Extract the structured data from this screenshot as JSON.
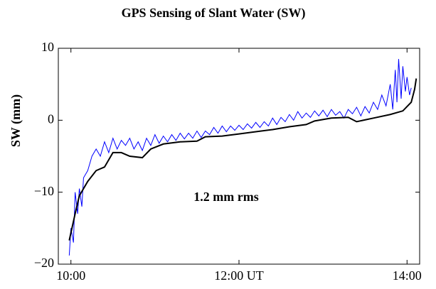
{
  "chart_data": {
    "type": "line",
    "title": "GPS Sensing of Slant Water (SW)",
    "ylabel": "SW (mm)",
    "annotation": "1.2 mm rms",
    "xlim": [
      9.85,
      14.15
    ],
    "xticks": [
      {
        "value": 10,
        "label": "10:00"
      },
      {
        "value": 12,
        "label": "12:00 UT"
      },
      {
        "value": 14,
        "label": "14:00"
      }
    ],
    "ylim": [
      -20,
      10
    ],
    "yticks": [
      10,
      0,
      {
        "value": -10,
        "label": "−10"
      },
      {
        "value": -20,
        "label": "−20"
      }
    ],
    "series": [
      {
        "color": "#0000ff",
        "x": [
          9.98,
          10.0,
          10.03,
          10.05,
          10.08,
          10.1,
          10.13,
          10.15,
          10.2,
          10.25,
          10.3,
          10.35,
          10.4,
          10.45,
          10.5,
          10.55,
          10.6,
          10.65,
          10.7,
          10.75,
          10.8,
          10.85,
          10.9,
          10.95,
          11.0,
          11.05,
          11.1,
          11.15,
          11.2,
          11.25,
          11.3,
          11.35,
          11.4,
          11.45,
          11.5,
          11.55,
          11.6,
          11.65,
          11.7,
          11.75,
          11.8,
          11.85,
          11.9,
          11.95,
          12.0,
          12.05,
          12.1,
          12.15,
          12.2,
          12.25,
          12.3,
          12.35,
          12.4,
          12.45,
          12.5,
          12.55,
          12.6,
          12.65,
          12.7,
          12.75,
          12.8,
          12.85,
          12.9,
          12.95,
          13.0,
          13.05,
          13.1,
          13.15,
          13.2,
          13.25,
          13.3,
          13.35,
          13.4,
          13.45,
          13.5,
          13.55,
          13.6,
          13.65,
          13.7,
          13.75,
          13.8,
          13.83,
          13.86,
          13.88,
          13.9,
          13.93,
          13.95,
          13.98,
          14.0,
          14.03,
          14.05
        ],
        "values": [
          -18.8,
          -15,
          -17,
          -10,
          -13,
          -9.5,
          -12,
          -8,
          -7,
          -5,
          -4,
          -5,
          -3,
          -4.5,
          -2.5,
          -4,
          -2.8,
          -3.5,
          -2.5,
          -4,
          -3,
          -4.2,
          -2.5,
          -3.5,
          -2,
          -3.2,
          -2.2,
          -3,
          -2,
          -2.8,
          -1.8,
          -2.6,
          -1.8,
          -2.5,
          -1.5,
          -2.4,
          -1.5,
          -2,
          -1,
          -1.8,
          -0.8,
          -1.6,
          -0.8,
          -1.4,
          -0.7,
          -1.3,
          -0.5,
          -1.1,
          -0.3,
          -1,
          -0.2,
          -0.8,
          0.3,
          -0.6,
          0.4,
          -0.2,
          0.8,
          0,
          1.2,
          0.3,
          1,
          0.4,
          1.3,
          0.6,
          1.4,
          0.5,
          1.5,
          0.7,
          1.2,
          0.3,
          1.5,
          0.9,
          1.8,
          0.6,
          1.9,
          1,
          2.5,
          1.5,
          3.5,
          2,
          5,
          1.5,
          7,
          2.5,
          8.5,
          3,
          7.5,
          4,
          6,
          3.5,
          4.5
        ]
      },
      {
        "color": "#000000",
        "x": [
          9.98,
          10.05,
          10.1,
          10.2,
          10.3,
          10.4,
          10.5,
          10.6,
          10.7,
          10.85,
          10.95,
          11.1,
          11.3,
          11.5,
          11.6,
          11.8,
          12.0,
          12.2,
          12.4,
          12.6,
          12.8,
          12.9,
          13.1,
          13.3,
          13.4,
          13.6,
          13.8,
          13.95,
          14.05,
          14.09,
          14.11
        ],
        "values": [
          -16.7,
          -13,
          -10.5,
          -8.5,
          -7,
          -6.5,
          -4.5,
          -4.5,
          -5,
          -5.2,
          -4,
          -3.3,
          -3,
          -2.9,
          -2.3,
          -2.2,
          -1.9,
          -1.6,
          -1.3,
          -0.9,
          -0.6,
          -0.1,
          0.3,
          0.4,
          -0.2,
          0.3,
          0.8,
          1.3,
          2.5,
          4.3,
          5.8
        ]
      }
    ]
  }
}
